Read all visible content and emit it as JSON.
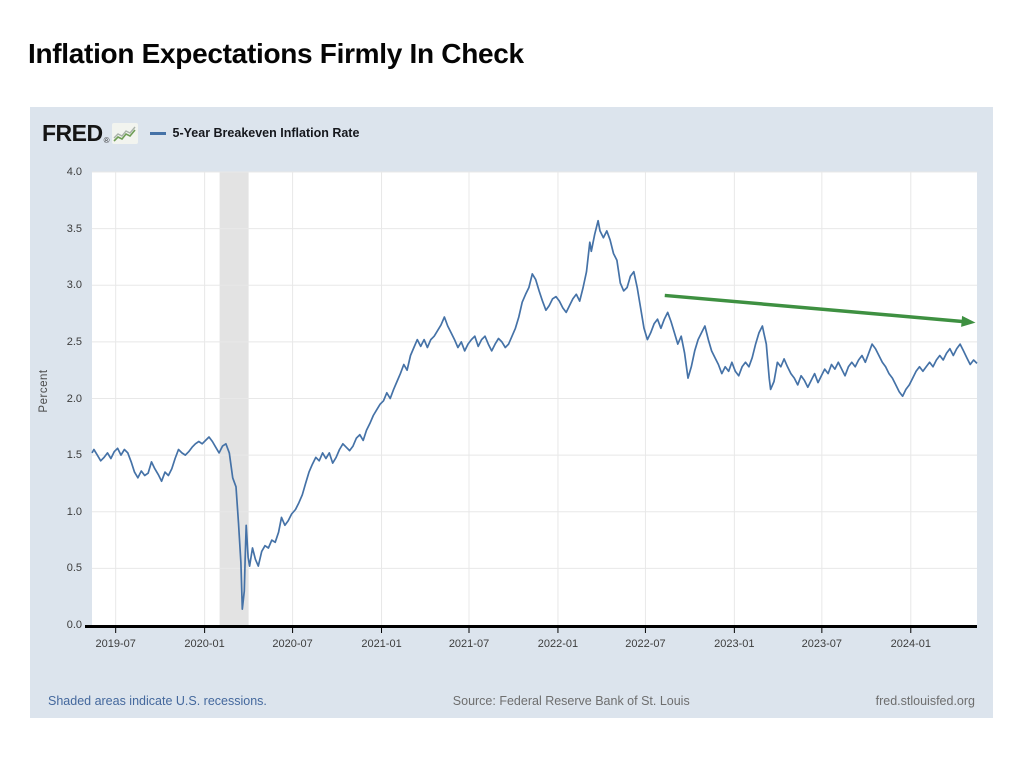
{
  "slide": {
    "title": "Inflation Expectations Firmly In Check"
  },
  "chart": {
    "brand": "FRED",
    "brand_mark": "®",
    "legend_label": "5-Year Breakeven Inflation Rate",
    "y_axis_label": "Percent",
    "footer": {
      "left": "Shaded areas indicate U.S. recessions.",
      "center": "Source: Federal Reserve Bank of St. Louis",
      "right": "fred.stlouisfed.org"
    },
    "colors": {
      "card_bg": "#dce4ed",
      "plot_bg": "#ffffff",
      "grid": "#e8e8e8",
      "recession_band": "#e3e3e3",
      "line": "#4572a7",
      "axis": "#000000",
      "arrow": "#3e9041",
      "link": "#44689d",
      "source_text": "#6e6e6e"
    }
  },
  "chart_data": {
    "type": "line",
    "title": "5-Year Breakeven Inflation Rate",
    "xlabel": "",
    "ylabel": "Percent",
    "ylim": [
      0.0,
      4.0
    ],
    "y_tick_step": 0.5,
    "grid": true,
    "legend_position": "top-left",
    "x_domain": [
      "2019-05-13",
      "2024-05-17"
    ],
    "x_ticks": [
      "2019-07",
      "2020-01",
      "2020-07",
      "2021-01",
      "2021-07",
      "2022-01",
      "2022-07",
      "2023-01",
      "2023-07",
      "2024-01"
    ],
    "recession_band": {
      "from": "2020-02-01",
      "to": "2020-04-01"
    },
    "annotation_arrow": {
      "from": [
        "2022-08-10",
        2.91
      ],
      "to": [
        "2024-05-14",
        2.67
      ]
    },
    "series": [
      {
        "name": "5-Year Breakeven Inflation Rate",
        "points": [
          [
            "2019-05-13",
            1.52
          ],
          [
            "2019-05-17",
            1.55
          ],
          [
            "2019-05-24",
            1.5
          ],
          [
            "2019-05-31",
            1.45
          ],
          [
            "2019-06-07",
            1.48
          ],
          [
            "2019-06-14",
            1.52
          ],
          [
            "2019-06-21",
            1.47
          ],
          [
            "2019-06-28",
            1.53
          ],
          [
            "2019-07-05",
            1.56
          ],
          [
            "2019-07-12",
            1.5
          ],
          [
            "2019-07-19",
            1.55
          ],
          [
            "2019-07-26",
            1.52
          ],
          [
            "2019-08-02",
            1.44
          ],
          [
            "2019-08-09",
            1.35
          ],
          [
            "2019-08-16",
            1.3
          ],
          [
            "2019-08-23",
            1.36
          ],
          [
            "2019-08-30",
            1.32
          ],
          [
            "2019-09-06",
            1.34
          ],
          [
            "2019-09-13",
            1.44
          ],
          [
            "2019-09-20",
            1.38
          ],
          [
            "2019-09-27",
            1.33
          ],
          [
            "2019-10-04",
            1.27
          ],
          [
            "2019-10-11",
            1.35
          ],
          [
            "2019-10-18",
            1.32
          ],
          [
            "2019-10-25",
            1.38
          ],
          [
            "2019-11-01",
            1.47
          ],
          [
            "2019-11-08",
            1.55
          ],
          [
            "2019-11-15",
            1.52
          ],
          [
            "2019-11-22",
            1.5
          ],
          [
            "2019-11-29",
            1.53
          ],
          [
            "2019-12-06",
            1.57
          ],
          [
            "2019-12-13",
            1.6
          ],
          [
            "2019-12-20",
            1.62
          ],
          [
            "2019-12-27",
            1.6
          ],
          [
            "2020-01-03",
            1.63
          ],
          [
            "2020-01-10",
            1.66
          ],
          [
            "2020-01-17",
            1.62
          ],
          [
            "2020-01-24",
            1.57
          ],
          [
            "2020-01-31",
            1.52
          ],
          [
            "2020-02-07",
            1.58
          ],
          [
            "2020-02-14",
            1.6
          ],
          [
            "2020-02-21",
            1.52
          ],
          [
            "2020-02-28",
            1.3
          ],
          [
            "2020-03-06",
            1.22
          ],
          [
            "2020-03-11",
            0.9
          ],
          [
            "2020-03-16",
            0.55
          ],
          [
            "2020-03-19",
            0.14
          ],
          [
            "2020-03-23",
            0.3
          ],
          [
            "2020-03-25",
            0.6
          ],
          [
            "2020-03-27",
            0.88
          ],
          [
            "2020-03-31",
            0.6
          ],
          [
            "2020-04-03",
            0.52
          ],
          [
            "2020-04-09",
            0.68
          ],
          [
            "2020-04-15",
            0.58
          ],
          [
            "2020-04-21",
            0.52
          ],
          [
            "2020-04-28",
            0.65
          ],
          [
            "2020-05-05",
            0.7
          ],
          [
            "2020-05-12",
            0.68
          ],
          [
            "2020-05-19",
            0.75
          ],
          [
            "2020-05-26",
            0.73
          ],
          [
            "2020-06-02",
            0.82
          ],
          [
            "2020-06-08",
            0.95
          ],
          [
            "2020-06-15",
            0.88
          ],
          [
            "2020-06-22",
            0.92
          ],
          [
            "2020-06-29",
            0.98
          ],
          [
            "2020-07-07",
            1.02
          ],
          [
            "2020-07-14",
            1.08
          ],
          [
            "2020-07-21",
            1.15
          ],
          [
            "2020-07-28",
            1.25
          ],
          [
            "2020-08-04",
            1.35
          ],
          [
            "2020-08-11",
            1.42
          ],
          [
            "2020-08-18",
            1.48
          ],
          [
            "2020-08-25",
            1.45
          ],
          [
            "2020-09-01",
            1.52
          ],
          [
            "2020-09-08",
            1.47
          ],
          [
            "2020-09-15",
            1.52
          ],
          [
            "2020-09-22",
            1.43
          ],
          [
            "2020-09-29",
            1.48
          ],
          [
            "2020-10-06",
            1.55
          ],
          [
            "2020-10-13",
            1.6
          ],
          [
            "2020-10-20",
            1.57
          ],
          [
            "2020-10-27",
            1.54
          ],
          [
            "2020-11-03",
            1.58
          ],
          [
            "2020-11-10",
            1.65
          ],
          [
            "2020-11-17",
            1.68
          ],
          [
            "2020-11-24",
            1.63
          ],
          [
            "2020-12-01",
            1.72
          ],
          [
            "2020-12-08",
            1.78
          ],
          [
            "2020-12-15",
            1.85
          ],
          [
            "2020-12-22",
            1.9
          ],
          [
            "2020-12-29",
            1.95
          ],
          [
            "2021-01-05",
            1.98
          ],
          [
            "2021-01-12",
            2.05
          ],
          [
            "2021-01-19",
            2.0
          ],
          [
            "2021-01-26",
            2.08
          ],
          [
            "2021-02-02",
            2.15
          ],
          [
            "2021-02-09",
            2.22
          ],
          [
            "2021-02-16",
            2.3
          ],
          [
            "2021-02-23",
            2.25
          ],
          [
            "2021-03-02",
            2.38
          ],
          [
            "2021-03-09",
            2.45
          ],
          [
            "2021-03-16",
            2.52
          ],
          [
            "2021-03-23",
            2.46
          ],
          [
            "2021-03-30",
            2.52
          ],
          [
            "2021-04-06",
            2.45
          ],
          [
            "2021-04-13",
            2.52
          ],
          [
            "2021-04-20",
            2.55
          ],
          [
            "2021-04-27",
            2.6
          ],
          [
            "2021-05-04",
            2.65
          ],
          [
            "2021-05-11",
            2.72
          ],
          [
            "2021-05-18",
            2.64
          ],
          [
            "2021-05-25",
            2.58
          ],
          [
            "2021-06-01",
            2.52
          ],
          [
            "2021-06-08",
            2.45
          ],
          [
            "2021-06-15",
            2.5
          ],
          [
            "2021-06-22",
            2.42
          ],
          [
            "2021-06-29",
            2.48
          ],
          [
            "2021-07-06",
            2.52
          ],
          [
            "2021-07-13",
            2.55
          ],
          [
            "2021-07-20",
            2.46
          ],
          [
            "2021-07-27",
            2.52
          ],
          [
            "2021-08-03",
            2.55
          ],
          [
            "2021-08-10",
            2.48
          ],
          [
            "2021-08-17",
            2.42
          ],
          [
            "2021-08-24",
            2.48
          ],
          [
            "2021-08-31",
            2.53
          ],
          [
            "2021-09-07",
            2.5
          ],
          [
            "2021-09-14",
            2.45
          ],
          [
            "2021-09-21",
            2.48
          ],
          [
            "2021-09-28",
            2.55
          ],
          [
            "2021-10-05",
            2.62
          ],
          [
            "2021-10-12",
            2.72
          ],
          [
            "2021-10-19",
            2.85
          ],
          [
            "2021-10-26",
            2.92
          ],
          [
            "2021-11-02",
            2.98
          ],
          [
            "2021-11-09",
            3.1
          ],
          [
            "2021-11-16",
            3.05
          ],
          [
            "2021-11-23",
            2.95
          ],
          [
            "2021-11-30",
            2.86
          ],
          [
            "2021-12-07",
            2.78
          ],
          [
            "2021-12-14",
            2.82
          ],
          [
            "2021-12-21",
            2.88
          ],
          [
            "2021-12-28",
            2.9
          ],
          [
            "2022-01-04",
            2.86
          ],
          [
            "2022-01-11",
            2.8
          ],
          [
            "2022-01-18",
            2.76
          ],
          [
            "2022-01-25",
            2.82
          ],
          [
            "2022-02-01",
            2.88
          ],
          [
            "2022-02-08",
            2.92
          ],
          [
            "2022-02-15",
            2.86
          ],
          [
            "2022-02-22",
            2.98
          ],
          [
            "2022-03-01",
            3.12
          ],
          [
            "2022-03-08",
            3.38
          ],
          [
            "2022-03-11",
            3.3
          ],
          [
            "2022-03-18",
            3.45
          ],
          [
            "2022-03-25",
            3.57
          ],
          [
            "2022-03-29",
            3.48
          ],
          [
            "2022-04-05",
            3.42
          ],
          [
            "2022-04-12",
            3.48
          ],
          [
            "2022-04-19",
            3.4
          ],
          [
            "2022-04-26",
            3.28
          ],
          [
            "2022-05-03",
            3.22
          ],
          [
            "2022-05-10",
            3.02
          ],
          [
            "2022-05-17",
            2.95
          ],
          [
            "2022-05-24",
            2.98
          ],
          [
            "2022-05-31",
            3.08
          ],
          [
            "2022-06-07",
            3.12
          ],
          [
            "2022-06-14",
            2.98
          ],
          [
            "2022-06-21",
            2.8
          ],
          [
            "2022-06-28",
            2.62
          ],
          [
            "2022-07-05",
            2.52
          ],
          [
            "2022-07-12",
            2.58
          ],
          [
            "2022-07-19",
            2.66
          ],
          [
            "2022-07-26",
            2.7
          ],
          [
            "2022-08-02",
            2.62
          ],
          [
            "2022-08-09",
            2.7
          ],
          [
            "2022-08-16",
            2.76
          ],
          [
            "2022-08-23",
            2.68
          ],
          [
            "2022-08-30",
            2.58
          ],
          [
            "2022-09-06",
            2.48
          ],
          [
            "2022-09-13",
            2.55
          ],
          [
            "2022-09-20",
            2.4
          ],
          [
            "2022-09-27",
            2.18
          ],
          [
            "2022-10-04",
            2.28
          ],
          [
            "2022-10-11",
            2.42
          ],
          [
            "2022-10-18",
            2.52
          ],
          [
            "2022-10-25",
            2.58
          ],
          [
            "2022-11-01",
            2.64
          ],
          [
            "2022-11-08",
            2.52
          ],
          [
            "2022-11-15",
            2.42
          ],
          [
            "2022-11-22",
            2.36
          ],
          [
            "2022-11-29",
            2.3
          ],
          [
            "2022-12-06",
            2.22
          ],
          [
            "2022-12-13",
            2.28
          ],
          [
            "2022-12-20",
            2.24
          ],
          [
            "2022-12-27",
            2.32
          ],
          [
            "2023-01-03",
            2.24
          ],
          [
            "2023-01-10",
            2.2
          ],
          [
            "2023-01-17",
            2.28
          ],
          [
            "2023-01-24",
            2.32
          ],
          [
            "2023-01-31",
            2.28
          ],
          [
            "2023-02-07",
            2.36
          ],
          [
            "2023-02-14",
            2.48
          ],
          [
            "2023-02-21",
            2.58
          ],
          [
            "2023-02-28",
            2.64
          ],
          [
            "2023-03-03",
            2.58
          ],
          [
            "2023-03-08",
            2.48
          ],
          [
            "2023-03-14",
            2.18
          ],
          [
            "2023-03-17",
            2.08
          ],
          [
            "2023-03-24",
            2.15
          ],
          [
            "2023-03-31",
            2.32
          ],
          [
            "2023-04-07",
            2.28
          ],
          [
            "2023-04-14",
            2.35
          ],
          [
            "2023-04-21",
            2.28
          ],
          [
            "2023-04-28",
            2.22
          ],
          [
            "2023-05-05",
            2.18
          ],
          [
            "2023-05-12",
            2.12
          ],
          [
            "2023-05-19",
            2.2
          ],
          [
            "2023-05-26",
            2.16
          ],
          [
            "2023-06-02",
            2.1
          ],
          [
            "2023-06-09",
            2.16
          ],
          [
            "2023-06-16",
            2.22
          ],
          [
            "2023-06-23",
            2.14
          ],
          [
            "2023-06-30",
            2.2
          ],
          [
            "2023-07-07",
            2.26
          ],
          [
            "2023-07-14",
            2.22
          ],
          [
            "2023-07-21",
            2.3
          ],
          [
            "2023-07-28",
            2.26
          ],
          [
            "2023-08-04",
            2.32
          ],
          [
            "2023-08-11",
            2.26
          ],
          [
            "2023-08-18",
            2.2
          ],
          [
            "2023-08-25",
            2.28
          ],
          [
            "2023-09-01",
            2.32
          ],
          [
            "2023-09-08",
            2.28
          ],
          [
            "2023-09-15",
            2.34
          ],
          [
            "2023-09-22",
            2.38
          ],
          [
            "2023-09-29",
            2.32
          ],
          [
            "2023-10-06",
            2.4
          ],
          [
            "2023-10-13",
            2.48
          ],
          [
            "2023-10-20",
            2.44
          ],
          [
            "2023-10-27",
            2.38
          ],
          [
            "2023-11-03",
            2.32
          ],
          [
            "2023-11-10",
            2.28
          ],
          [
            "2023-11-17",
            2.22
          ],
          [
            "2023-11-24",
            2.18
          ],
          [
            "2023-12-01",
            2.12
          ],
          [
            "2023-12-08",
            2.06
          ],
          [
            "2023-12-15",
            2.02
          ],
          [
            "2023-12-22",
            2.08
          ],
          [
            "2023-12-29",
            2.12
          ],
          [
            "2024-01-05",
            2.18
          ],
          [
            "2024-01-12",
            2.24
          ],
          [
            "2024-01-19",
            2.28
          ],
          [
            "2024-01-26",
            2.24
          ],
          [
            "2024-02-02",
            2.28
          ],
          [
            "2024-02-09",
            2.32
          ],
          [
            "2024-02-16",
            2.28
          ],
          [
            "2024-02-23",
            2.34
          ],
          [
            "2024-03-01",
            2.38
          ],
          [
            "2024-03-08",
            2.34
          ],
          [
            "2024-03-15",
            2.4
          ],
          [
            "2024-03-22",
            2.44
          ],
          [
            "2024-03-29",
            2.38
          ],
          [
            "2024-04-05",
            2.44
          ],
          [
            "2024-04-12",
            2.48
          ],
          [
            "2024-04-19",
            2.42
          ],
          [
            "2024-04-26",
            2.36
          ],
          [
            "2024-05-03",
            2.3
          ],
          [
            "2024-05-10",
            2.34
          ],
          [
            "2024-05-17",
            2.31
          ]
        ]
      }
    ]
  }
}
